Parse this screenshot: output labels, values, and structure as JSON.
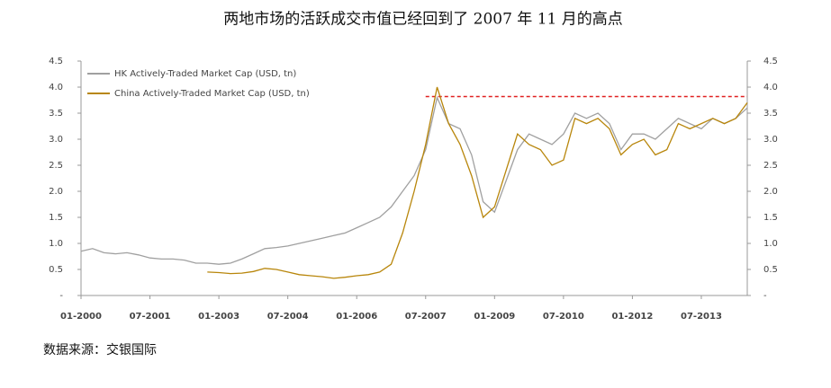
{
  "chart_data": {
    "type": "line",
    "title": "两地市场的活跃成交市值已经回到了 2007 年 11 月的高点",
    "source": "数据来源：交银国际",
    "x": [
      "01-2000",
      "04-2000",
      "07-2000",
      "10-2000",
      "01-2001",
      "04-2001",
      "07-2001",
      "10-2001",
      "01-2002",
      "04-2002",
      "07-2002",
      "10-2002",
      "01-2003",
      "04-2003",
      "07-2003",
      "10-2003",
      "01-2004",
      "04-2004",
      "07-2004",
      "10-2004",
      "01-2005",
      "04-2005",
      "07-2005",
      "10-2005",
      "01-2006",
      "04-2006",
      "07-2006",
      "10-2006",
      "01-2007",
      "04-2007",
      "07-2007",
      "10-2007",
      "01-2008",
      "04-2008",
      "07-2008",
      "10-2008",
      "01-2009",
      "04-2009",
      "07-2009",
      "10-2009",
      "01-2010",
      "04-2010",
      "07-2010",
      "10-2010",
      "01-2011",
      "04-2011",
      "07-2011",
      "10-2011",
      "01-2012",
      "04-2012",
      "07-2012",
      "10-2012",
      "01-2013",
      "04-2013",
      "07-2013",
      "10-2013",
      "01-2014",
      "04-2014",
      "07-2014"
    ],
    "series": [
      {
        "name": "HK Actively-Traded Market Cap (USD, tn)",
        "color": "#a0a0a0",
        "values": [
          0.85,
          0.9,
          0.82,
          0.8,
          0.82,
          0.78,
          0.72,
          0.7,
          0.7,
          0.68,
          0.62,
          0.62,
          0.6,
          0.62,
          0.7,
          0.8,
          0.9,
          0.92,
          0.95,
          1.0,
          1.05,
          1.1,
          1.15,
          1.2,
          1.3,
          1.4,
          1.5,
          1.7,
          2.0,
          2.3,
          2.8,
          3.8,
          3.3,
          3.2,
          2.7,
          1.8,
          1.6,
          2.2,
          2.8,
          3.1,
          3.0,
          2.9,
          3.1,
          3.5,
          3.4,
          3.5,
          3.3,
          2.8,
          3.1,
          3.1,
          3.0,
          3.2,
          3.4,
          3.3,
          3.2,
          3.4,
          3.3,
          3.4,
          3.6
        ]
      },
      {
        "name": "China Actively-Traded Market Cap (USD, tn)",
        "color": "#b8860b",
        "values": [
          null,
          null,
          null,
          null,
          null,
          null,
          null,
          null,
          null,
          null,
          null,
          0.45,
          0.44,
          0.42,
          0.43,
          0.46,
          0.52,
          0.5,
          0.45,
          0.4,
          0.38,
          0.36,
          0.33,
          0.35,
          0.38,
          0.4,
          0.45,
          0.6,
          1.2,
          2.0,
          2.9,
          4.0,
          3.3,
          2.9,
          2.3,
          1.5,
          1.7,
          2.4,
          3.1,
          2.9,
          2.8,
          2.5,
          2.6,
          3.4,
          3.3,
          3.4,
          3.2,
          2.7,
          2.9,
          3.0,
          2.7,
          2.8,
          3.3,
          3.2,
          3.3,
          3.4,
          3.3,
          3.4,
          3.7
        ]
      }
    ],
    "reference_line": {
      "value": 3.82,
      "color": "#e02020",
      "x_start": "07-2007"
    },
    "xlim": [
      "01-2000",
      "07-2014"
    ],
    "xticks": [
      "01-2000",
      "07-2001",
      "01-2003",
      "07-2004",
      "01-2006",
      "07-2007",
      "01-2009",
      "07-2010",
      "01-2012",
      "07-2013"
    ],
    "ylim": [
      0,
      4.5
    ],
    "yticks": [
      {
        "value": 0,
        "label": "-"
      },
      0.5,
      {
        "value": 1,
        "label": "1.0"
      },
      1.5,
      {
        "value": 2,
        "label": "2.0"
      },
      2.5,
      {
        "value": 3,
        "label": "3.0"
      },
      3.5,
      {
        "value": 4,
        "label": "4.0"
      },
      4.5
    ],
    "y2lim": [
      0,
      4.5
    ],
    "y2ticks": [
      {
        "value": 0,
        "label": "-"
      },
      0.5,
      {
        "value": 1,
        "label": "1.0"
      },
      1.5,
      {
        "value": 2,
        "label": "2.0"
      },
      2.5,
      {
        "value": 3,
        "label": "3.0"
      },
      3.5,
      {
        "value": 4,
        "label": "4.0"
      },
      4.5
    ],
    "legend": "upper left"
  }
}
